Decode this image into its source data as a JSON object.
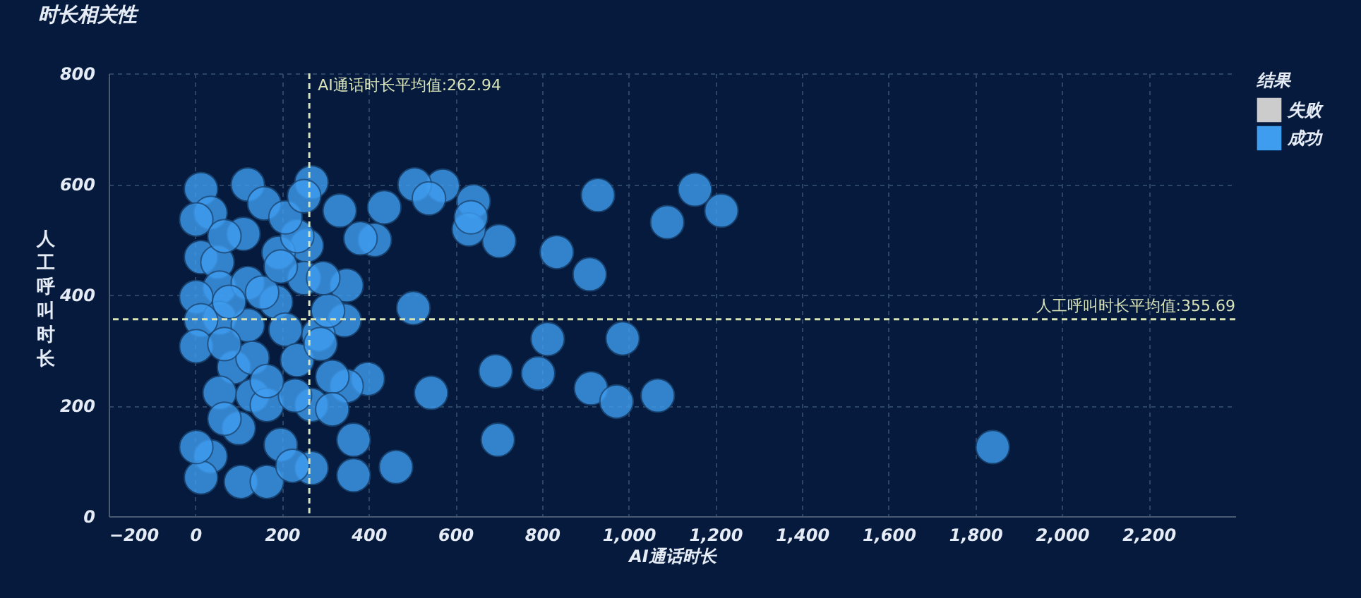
{
  "chart_data": {
    "type": "scatter",
    "title": "时长相关性",
    "xlabel": "AI通话时长",
    "ylabel": "人工呼叫时长",
    "legend_title": "结果",
    "xlim": [
      -200,
      2400
    ],
    "ylim": [
      0,
      800
    ],
    "xticks": [
      -200,
      0,
      200,
      400,
      600,
      800,
      {
        "value": 1000,
        "label": "1,000"
      },
      {
        "value": 1200,
        "label": "1,200"
      },
      {
        "value": 1400,
        "label": "1,400"
      },
      {
        "value": 1600,
        "label": "1,600"
      },
      {
        "value": 1800,
        "label": "1,800"
      },
      {
        "value": 2000,
        "label": "2,000"
      },
      {
        "value": 2200,
        "label": "2,200"
      }
    ],
    "yticks": [
      0,
      200,
      400,
      600,
      800
    ],
    "grid": true,
    "legend": "top right",
    "marker": "circle",
    "ref_lines": [
      {
        "axis": "x",
        "value": 262.94,
        "label": "AI通话时长平均值:262.94",
        "color": "#d8e4b8",
        "line_style": "dashed"
      },
      {
        "axis": "y",
        "value": 355.69,
        "label": "人工呼叫时长平均值:355.69",
        "color": "#d8e4b8",
        "line_style": "dashed"
      }
    ],
    "series": [
      {
        "name": "失败",
        "color": "#cccccc"
      },
      {
        "name": "成功",
        "color": "#3f9df0",
        "x": [
          929,
          1153,
          1214,
          1089,
          834,
          910,
          701,
          642,
          631,
          636,
          813,
          986,
          693,
          791,
          913,
          972,
          1067,
          698,
          544,
          571,
          506,
          539,
          1840,
          503,
          463,
          398,
          365,
          365,
          333,
          436,
          414,
          381,
          349,
          344,
          349,
          268,
          268,
          257,
          284,
          268,
          13,
          121,
          35,
          2,
          159,
          111,
          192,
          13,
          51,
          56,
          2,
          121,
          186,
          251,
          56,
          13,
          121,
          2,
          208,
          235,
          289,
          89,
          56,
          132,
          165,
          230,
          100,
          67,
          197,
          35,
          13,
          2,
          105,
          165,
          224,
          78,
          154,
          197,
          235,
          208,
          67,
          132,
          165,
          67,
          306,
          316,
          295,
          251,
          316
        ],
        "values": [
          580,
          590,
          552,
          531,
          477,
          437,
          497,
          569,
          518,
          540,
          320,
          321,
          262,
          258,
          231,
          207,
          218,
          138,
          223,
          597,
          599,
          574,
          125,
          376,
          89,
          248,
          74,
          138,
          552,
          558,
          499,
          502,
          417,
          354,
          235,
          603,
          87,
          489,
          328,
          201,
          591,
          599,
          548,
          536,
          565,
          510,
          476,
          468,
          459,
          413,
          396,
          421,
          387,
          430,
          358,
          354,
          345,
          307,
          337,
          282,
          311,
          269,
          223,
          218,
          201,
          218,
          159,
          176,
          129,
          108,
          70,
          125,
          62,
          62,
          91,
          387,
          404,
          451,
          506,
          540,
          506,
          286,
          244,
          311,
          371,
          252,
          430,
          578,
          193
        ]
      }
    ]
  }
}
